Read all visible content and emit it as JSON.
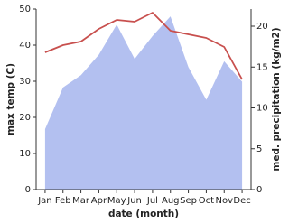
{
  "chart_data": {
    "type": "line",
    "x_label": "date (month)",
    "y_label": "max temp (C)",
    "y2_label": "med. precipitation (kg/m2)",
    "categories": [
      "Jan",
      "Feb",
      "Mar",
      "Apr",
      "May",
      "Jun",
      "Jul",
      "Aug",
      "Sep",
      "Oct",
      "Nov",
      "Dec"
    ],
    "series": [
      {
        "name": "med. precipitation",
        "kind": "area",
        "axis": "y2",
        "color": "#b3c0f0",
        "values": [
          7.4,
          12.5,
          14,
          16.5,
          20.2,
          16,
          18.8,
          21.2,
          15,
          11,
          15.7,
          13.2
        ]
      },
      {
        "name": "max temp",
        "kind": "line",
        "color": "#c8504e",
        "values": [
          38,
          40,
          41,
          44.5,
          47,
          46.5,
          49,
          44,
          43,
          42,
          39.5,
          30.5
        ]
      }
    ],
    "ylim": [
      0,
      50
    ],
    "yticks": [
      0,
      10,
      20,
      30,
      40,
      50
    ],
    "y2lim": [
      0,
      22.1
    ],
    "y2ticks": [
      0,
      5,
      10,
      15,
      20
    ]
  }
}
